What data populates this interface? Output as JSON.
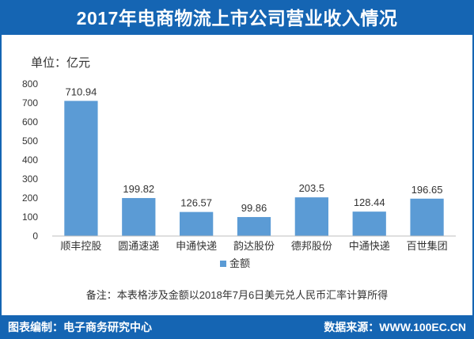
{
  "title": "2017年电商物流上市公司营业收入情况",
  "unit_label": "单位：亿元",
  "note": "备注：本表格涉及金额以2018年7月6日美元兑人民币汇率计算所得",
  "footer": {
    "left": "图表编制：电子商务研究中心",
    "right": "数据来源：WWW.100EC.CN"
  },
  "colors": {
    "bar": "#5b9bd5",
    "header_bg": "#1565b3"
  },
  "chart_data": {
    "type": "bar",
    "categories": [
      "顺丰控股",
      "圆通速递",
      "申通快递",
      "韵达股份",
      "德邦股份",
      "中通快递",
      "百世集团"
    ],
    "series": [
      {
        "name": "金额",
        "values": [
          710.94,
          199.82,
          126.57,
          99.86,
          203.5,
          128.44,
          196.65
        ]
      }
    ],
    "data_labels": [
      "710.94",
      "199.82",
      "126.57",
      "99.86",
      "203.5",
      "128.44",
      "196.65"
    ],
    "yticks": [
      0,
      100,
      200,
      300,
      400,
      500,
      600,
      700,
      800
    ],
    "ylim": [
      0,
      800
    ],
    "grid": false,
    "legend_position": "bottom"
  }
}
